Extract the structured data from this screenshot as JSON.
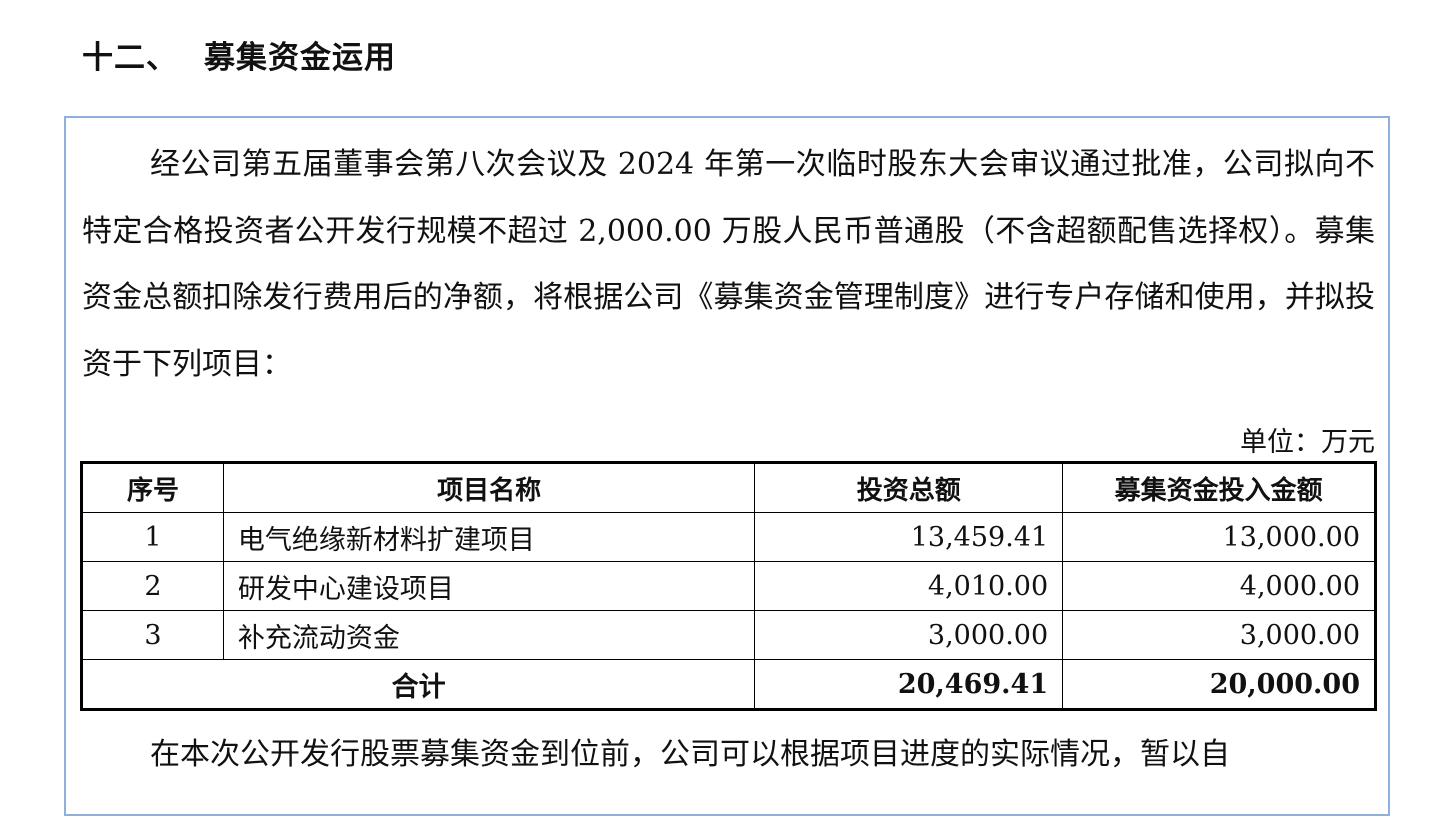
{
  "section": {
    "number": "十二、",
    "title": "募集资金运用"
  },
  "paragraph": "经公司第五届董事会第八次会议及 2024 年第一次临时股东大会审议通过批准，公司拟向不特定合格投资者公开发行规模不超过 2,000.00 万股人民币普通股（不含超额配售选择权）。募集资金总额扣除发行费用后的净额，将根据公司《募集资金管理制度》进行专户存储和使用，并拟投资于下列项目：",
  "unit": "单位：万元",
  "table": {
    "headers": [
      "序号",
      "项目名称",
      "投资总额",
      "募集资金投入金额"
    ],
    "rows": [
      [
        "1",
        "电气绝缘新材料扩建项目",
        "13,459.41",
        "13,000.00"
      ],
      [
        "2",
        "研发中心建设项目",
        "4,010.00",
        "4,000.00"
      ],
      [
        "3",
        "补充流动资金",
        "3,000.00",
        "3,000.00"
      ]
    ],
    "total": [
      "合计",
      "20,469.41",
      "20,000.00"
    ]
  },
  "tail_paragraph": "在本次公开发行股票募集资金到位前，公司可以根据项目进度的实际情况，暂以自"
}
